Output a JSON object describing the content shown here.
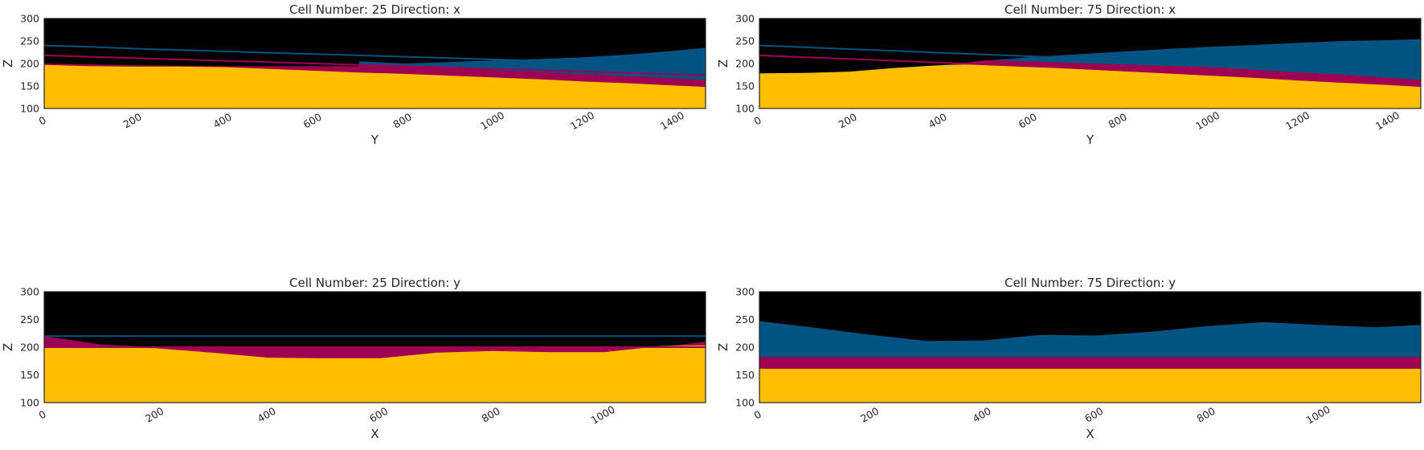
{
  "colors": {
    "background": "#000000",
    "unit_top": "#015482",
    "unit_middle": "#9f0052",
    "unit_bottom": "#ffbe00",
    "frame": "#262626",
    "text": "#262626"
  },
  "chart_data": [
    {
      "type": "area",
      "title": "Cell Number: 25 Direction: x",
      "xlabel": "Y",
      "ylabel": "Z",
      "xlim": [
        0,
        1470
      ],
      "ylim": [
        100,
        300
      ],
      "xticks": [
        0,
        200,
        400,
        600,
        800,
        1000,
        1200,
        1400
      ],
      "yticks": [
        100,
        150,
        200,
        250,
        300
      ],
      "grid": false,
      "x": [
        0,
        100,
        200,
        300,
        400,
        500,
        600,
        700,
        800,
        900,
        1000,
        1100,
        1200,
        1300,
        1400,
        1470
      ],
      "series": [
        {
          "color": "#015482",
          "kind": "fill",
          "values": [
            null,
            null,
            null,
            null,
            null,
            null,
            null,
            205,
            200,
            203,
            207,
            210,
            214,
            220,
            228,
            235
          ]
        },
        {
          "color": "#9f0052",
          "kind": "fill",
          "values": [
            200,
            198,
            196,
            195,
            194,
            194,
            194,
            194,
            194,
            190,
            185,
            181,
            176,
            172,
            167,
            164
          ]
        },
        {
          "color": "#ffbe00",
          "kind": "fill",
          "values": [
            197,
            194,
            193,
            193,
            192,
            188,
            184,
            180,
            177,
            173,
            169,
            165,
            160,
            156,
            151,
            148
          ]
        },
        {
          "color": "#015482",
          "kind": "line",
          "values": [
            240,
            237,
            233,
            230,
            227,
            224,
            221,
            218,
            215,
            212,
            209,
            206,
            203,
            200,
            197,
            195
          ]
        },
        {
          "color": "#9f0052",
          "kind": "line",
          "values": [
            218,
            215,
            212,
            209,
            206,
            203,
            200,
            197,
            194,
            191,
            188,
            185,
            182,
            179,
            176,
            174
          ]
        }
      ]
    },
    {
      "type": "area",
      "title": "Cell Number: 75 Direction: x",
      "xlabel": "Y",
      "ylabel": "Z",
      "xlim": [
        0,
        1470
      ],
      "ylim": [
        100,
        300
      ],
      "xticks": [
        0,
        200,
        400,
        600,
        800,
        1000,
        1200,
        1400
      ],
      "yticks": [
        100,
        150,
        200,
        250,
        300
      ],
      "grid": false,
      "x": [
        0,
        100,
        200,
        300,
        400,
        500,
        600,
        700,
        800,
        900,
        1000,
        1100,
        1200,
        1300,
        1400,
        1470
      ],
      "series": [
        {
          "color": "#015482",
          "kind": "fill",
          "values": [
            null,
            null,
            null,
            null,
            196,
            206,
            214,
            220,
            226,
            232,
            237,
            241,
            246,
            250,
            252,
            254
          ]
        },
        {
          "color": "#9f0052",
          "kind": "fill",
          "values": [
            null,
            null,
            null,
            190,
            194,
            207,
            205,
            201,
            198,
            195,
            192,
            186,
            180,
            175,
            168,
            164
          ]
        },
        {
          "color": "#ffbe00",
          "kind": "fill",
          "values": [
            178,
            179,
            182,
            190,
            196,
            199,
            193,
            188,
            183,
            178,
            173,
            168,
            162,
            157,
            152,
            148
          ]
        },
        {
          "color": "#015482",
          "kind": "line",
          "values": [
            240,
            236,
            232,
            228,
            224,
            220,
            216,
            212,
            208,
            204,
            200,
            196,
            192,
            188,
            184,
            181
          ]
        },
        {
          "color": "#9f0052",
          "kind": "line",
          "values": [
            218,
            214,
            210,
            206,
            202,
            198,
            194,
            190,
            186,
            182,
            178,
            174,
            170,
            166,
            162,
            159
          ]
        }
      ]
    },
    {
      "type": "area",
      "title": "Cell Number: 25 Direction: y",
      "xlabel": "X",
      "ylabel": "Z",
      "xlim": [
        0,
        1180
      ],
      "ylim": [
        100,
        300
      ],
      "xticks": [
        0,
        200,
        400,
        600,
        800,
        1000
      ],
      "yticks": [
        100,
        150,
        200,
        250,
        300
      ],
      "grid": false,
      "x": [
        0,
        100,
        200,
        300,
        400,
        500,
        600,
        700,
        800,
        900,
        1000,
        1100,
        1180
      ],
      "series": [
        {
          "color": "#9f0052",
          "kind": "fill",
          "values": [
            220,
            205,
            200,
            200,
            200,
            200,
            200,
            200,
            200,
            200,
            200,
            200,
            210
          ]
        },
        {
          "color": "#ffbe00",
          "kind": "fill",
          "values": [
            200,
            200,
            198,
            190,
            181,
            180,
            180,
            190,
            193,
            191,
            191,
            202,
            203
          ]
        },
        {
          "color": "#015482",
          "kind": "line",
          "values": [
            220,
            220,
            220,
            220,
            220,
            220,
            220,
            220,
            220,
            220,
            220,
            220,
            220
          ]
        },
        {
          "color": "#9f0052",
          "kind": "line",
          "values": [
            200,
            200,
            200,
            200,
            200,
            200,
            200,
            200,
            200,
            200,
            200,
            200,
            200
          ]
        }
      ]
    },
    {
      "type": "area",
      "title": "Cell Number: 75 Direction: y",
      "xlabel": "X",
      "ylabel": "Z",
      "xlim": [
        0,
        1180
      ],
      "ylim": [
        100,
        300
      ],
      "xticks": [
        0,
        200,
        400,
        600,
        800,
        1000
      ],
      "yticks": [
        100,
        150,
        200,
        250,
        300
      ],
      "grid": false,
      "x": [
        0,
        100,
        200,
        300,
        400,
        500,
        600,
        700,
        800,
        900,
        1000,
        1100,
        1180
      ],
      "series": [
        {
          "color": "#015482",
          "kind": "fill",
          "values": [
            247,
            235,
            222,
            211,
            212,
            222,
            221,
            228,
            238,
            245,
            240,
            236,
            240
          ]
        },
        {
          "color": "#9f0052",
          "kind": "fill",
          "values": [
            182,
            182,
            182,
            182,
            182,
            182,
            182,
            182,
            182,
            182,
            182,
            182,
            182
          ]
        },
        {
          "color": "#ffbe00",
          "kind": "fill",
          "values": [
            161,
            161,
            161,
            161,
            161,
            161,
            161,
            161,
            161,
            161,
            161,
            161,
            161
          ]
        }
      ]
    }
  ]
}
